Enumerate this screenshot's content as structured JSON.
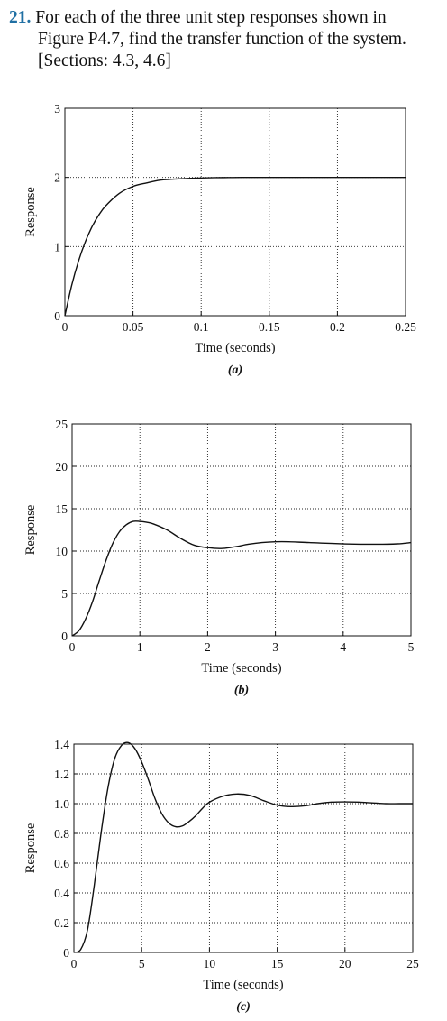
{
  "problem": {
    "number": "21.",
    "line1": "For each of the three unit step responses shown in",
    "line2": "Figure P4.7, find the transfer function of the system.",
    "line3": "[Sections: 4.3, 4.6]"
  },
  "chart_data": [
    {
      "id": "a",
      "type": "line",
      "caption": "(a)",
      "xlabel": "Time (seconds)",
      "ylabel": "Response",
      "xlim": [
        0,
        0.25
      ],
      "ylim": [
        0,
        3
      ],
      "xticks": [
        0,
        0.05,
        0.1,
        0.15,
        0.2,
        0.25
      ],
      "xtick_labels": [
        "0",
        "0.05",
        "0.1",
        "0.15",
        "0.2",
        "0.25"
      ],
      "yticks": [
        0,
        1,
        2,
        3
      ],
      "ytick_labels": [
        "0",
        "1",
        "2",
        "3"
      ],
      "grid": true,
      "series": [
        {
          "x": [
            0,
            0.005,
            0.01,
            0.015,
            0.02,
            0.025,
            0.03,
            0.04,
            0.05,
            0.06,
            0.07,
            0.08,
            0.09,
            0.1,
            0.11,
            0.12,
            0.13,
            0.15,
            0.2,
            0.25
          ],
          "y": [
            0,
            0.44,
            0.79,
            1.07,
            1.29,
            1.46,
            1.59,
            1.77,
            1.87,
            1.92,
            1.96,
            1.975,
            1.985,
            1.992,
            1.996,
            1.998,
            2.0,
            2.0,
            2.0,
            2.0
          ]
        }
      ]
    },
    {
      "id": "b",
      "type": "line",
      "caption": "(b)",
      "xlabel": "Time (seconds)",
      "ylabel": "Response",
      "xlim": [
        0,
        5
      ],
      "ylim": [
        0,
        25
      ],
      "xticks": [
        0,
        1,
        2,
        3,
        4,
        5
      ],
      "xtick_labels": [
        "0",
        "1",
        "2",
        "3",
        "4",
        "5"
      ],
      "yticks": [
        0,
        5,
        10,
        15,
        20,
        25
      ],
      "ytick_labels": [
        "0",
        "5",
        "10",
        "15",
        "20",
        "25"
      ],
      "grid": true,
      "series": [
        {
          "x": [
            0,
            0.1,
            0.2,
            0.3,
            0.4,
            0.5,
            0.6,
            0.7,
            0.8,
            0.9,
            1.0,
            1.1,
            1.2,
            1.4,
            1.6,
            1.8,
            2.0,
            2.2,
            2.4,
            2.6,
            2.8,
            3.0,
            3.2,
            3.5,
            4.0,
            4.5,
            4.8,
            5.0
          ],
          "y": [
            0,
            0.6,
            2.0,
            4.0,
            6.5,
            8.9,
            10.9,
            12.3,
            13.1,
            13.5,
            13.5,
            13.4,
            13.2,
            12.5,
            11.5,
            10.7,
            10.4,
            10.3,
            10.5,
            10.8,
            11.0,
            11.1,
            11.1,
            11.0,
            10.85,
            10.8,
            10.85,
            11.0
          ]
        }
      ]
    },
    {
      "id": "c",
      "type": "line",
      "caption": "(c)",
      "xlabel": "Time (seconds)",
      "ylabel": "Response",
      "xlim": [
        0,
        25
      ],
      "ylim": [
        0,
        1.4
      ],
      "xticks": [
        0,
        5,
        10,
        15,
        20,
        25
      ],
      "xtick_labels": [
        "0",
        "5",
        "10",
        "15",
        "20",
        "25"
      ],
      "yticks": [
        0,
        0.2,
        0.4,
        0.6,
        0.8,
        1.0,
        1.2,
        1.4
      ],
      "ytick_labels": [
        "0",
        "0.2",
        "0.4",
        "0.6",
        "0.8",
        "1.0",
        "1.2",
        "1.4"
      ],
      "grid": true,
      "series": [
        {
          "x": [
            0,
            0.5,
            1.0,
            1.5,
            2.0,
            2.5,
            3.0,
            3.5,
            4.0,
            4.5,
            5.0,
            5.5,
            6.0,
            6.5,
            7.0,
            7.5,
            8.0,
            8.5,
            9.0,
            9.5,
            10.0,
            11.0,
            12.0,
            13.0,
            14.0,
            15.0,
            16.0,
            17.0,
            18.0,
            19.0,
            20.0,
            21.0,
            22.0,
            23.0,
            24.0,
            25.0
          ],
          "y": [
            0,
            0.02,
            0.15,
            0.45,
            0.8,
            1.1,
            1.3,
            1.39,
            1.41,
            1.37,
            1.28,
            1.16,
            1.03,
            0.93,
            0.87,
            0.845,
            0.85,
            0.88,
            0.92,
            0.97,
            1.01,
            1.05,
            1.065,
            1.055,
            1.02,
            0.99,
            0.98,
            0.985,
            1.0,
            1.01,
            1.012,
            1.01,
            1.005,
            1.0,
            1.0,
            1.0
          ]
        }
      ]
    }
  ]
}
